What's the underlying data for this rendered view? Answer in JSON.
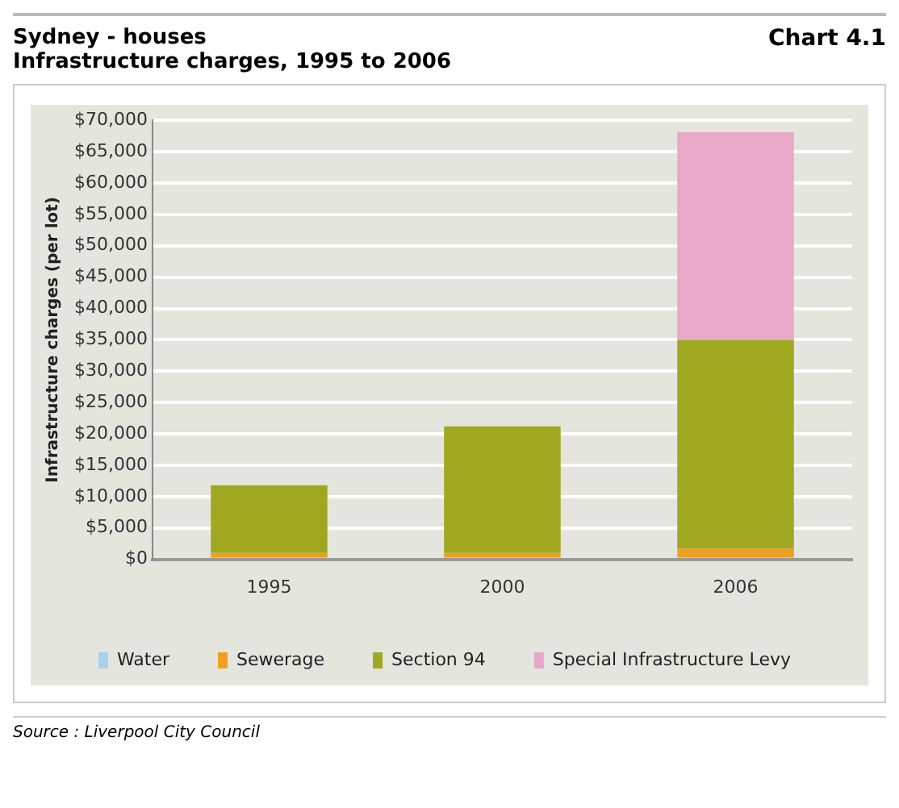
{
  "chart_data": {
    "type": "bar",
    "title": "Sydney - houses\nInfrastructure charges, 1995 to 2006",
    "ylabel": "Infrastructure charges (per lot)",
    "categories": [
      "1995",
      "2000",
      "2006"
    ],
    "stacked": true,
    "series": [
      {
        "name": "Water",
        "color": "#a8d0e8",
        "values": [
          0,
          0,
          0
        ]
      },
      {
        "name": "Sewerage",
        "color": "#f0a020",
        "values": [
          1000,
          1000,
          1700
        ]
      },
      {
        "name": "Section 94",
        "color": "#a0a820",
        "values": [
          10800,
          20200,
          33300
        ]
      },
      {
        "name": "Special Infrastructure Levy",
        "color": "#e8a8c8",
        "values": [
          0,
          0,
          33100
        ]
      }
    ],
    "ylim": [
      0,
      70000
    ],
    "yticks": [
      {
        "value": 0,
        "label": "$0"
      },
      {
        "value": 5000,
        "label": "$5,000"
      },
      {
        "value": 10000,
        "label": "$10,000"
      },
      {
        "value": 15000,
        "label": "$15,000"
      },
      {
        "value": 20000,
        "label": "$20,000"
      },
      {
        "value": 25000,
        "label": "$25,000"
      },
      {
        "value": 30000,
        "label": "$30,000"
      },
      {
        "value": 35000,
        "label": "$35,000"
      },
      {
        "value": 40000,
        "label": "$40,000"
      },
      {
        "value": 45000,
        "label": "$45,000"
      },
      {
        "value": 50000,
        "label": "$50,000"
      },
      {
        "value": 55000,
        "label": "$55,000"
      },
      {
        "value": 60000,
        "label": "$60,000"
      },
      {
        "value": 65000,
        "label": "$65,000"
      },
      {
        "value": 70000,
        "label": "$70,000"
      }
    ],
    "grid": "y",
    "legend": "bottom",
    "annotations": [
      "Chart 4.1",
      "Source : Liverpool City Council"
    ]
  }
}
